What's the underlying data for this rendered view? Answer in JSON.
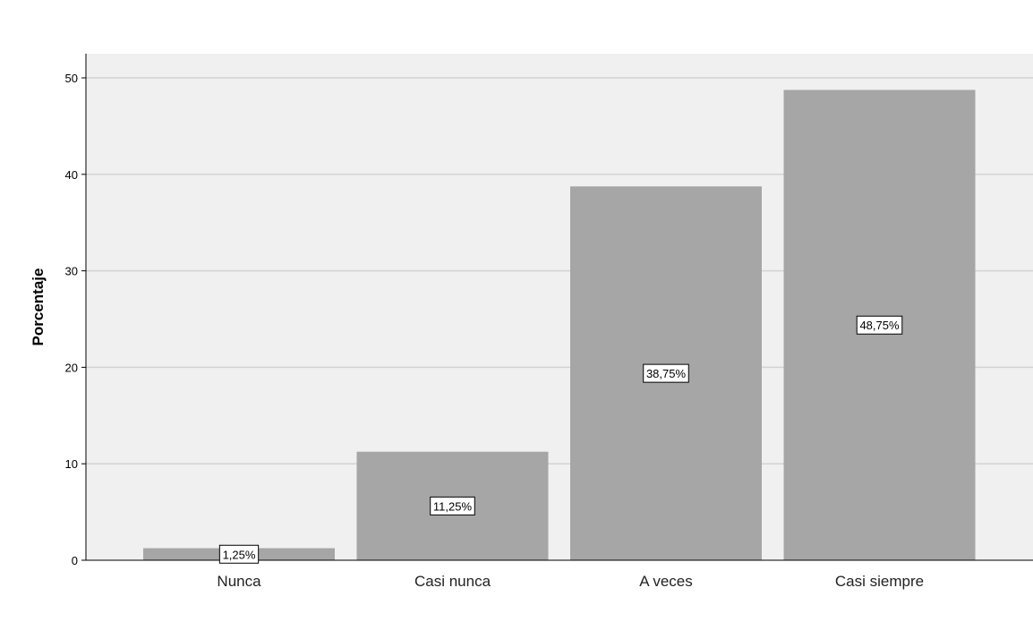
{
  "chart_data": {
    "type": "bar",
    "title": "",
    "xlabel": "",
    "ylabel": "Porcentaje",
    "ylim": [
      0,
      52.5
    ],
    "yticks": [
      0,
      10,
      20,
      30,
      40,
      50
    ],
    "grid": true,
    "categories": [
      "Nunca",
      "Casi nunca",
      "A veces",
      "Casi siempre"
    ],
    "values": [
      1.25,
      11.25,
      38.75,
      48.75
    ],
    "data_labels": [
      "1,25%",
      "11,25%",
      "38,75%",
      "48,75%"
    ],
    "colors": {
      "plot_background": "#f0f0f0",
      "bar_fill": "#a6a6a6",
      "gridline": "#d3d3d3",
      "axis": "#000000",
      "label_box_fill": "#ffffff",
      "label_box_stroke": "#000000"
    }
  }
}
